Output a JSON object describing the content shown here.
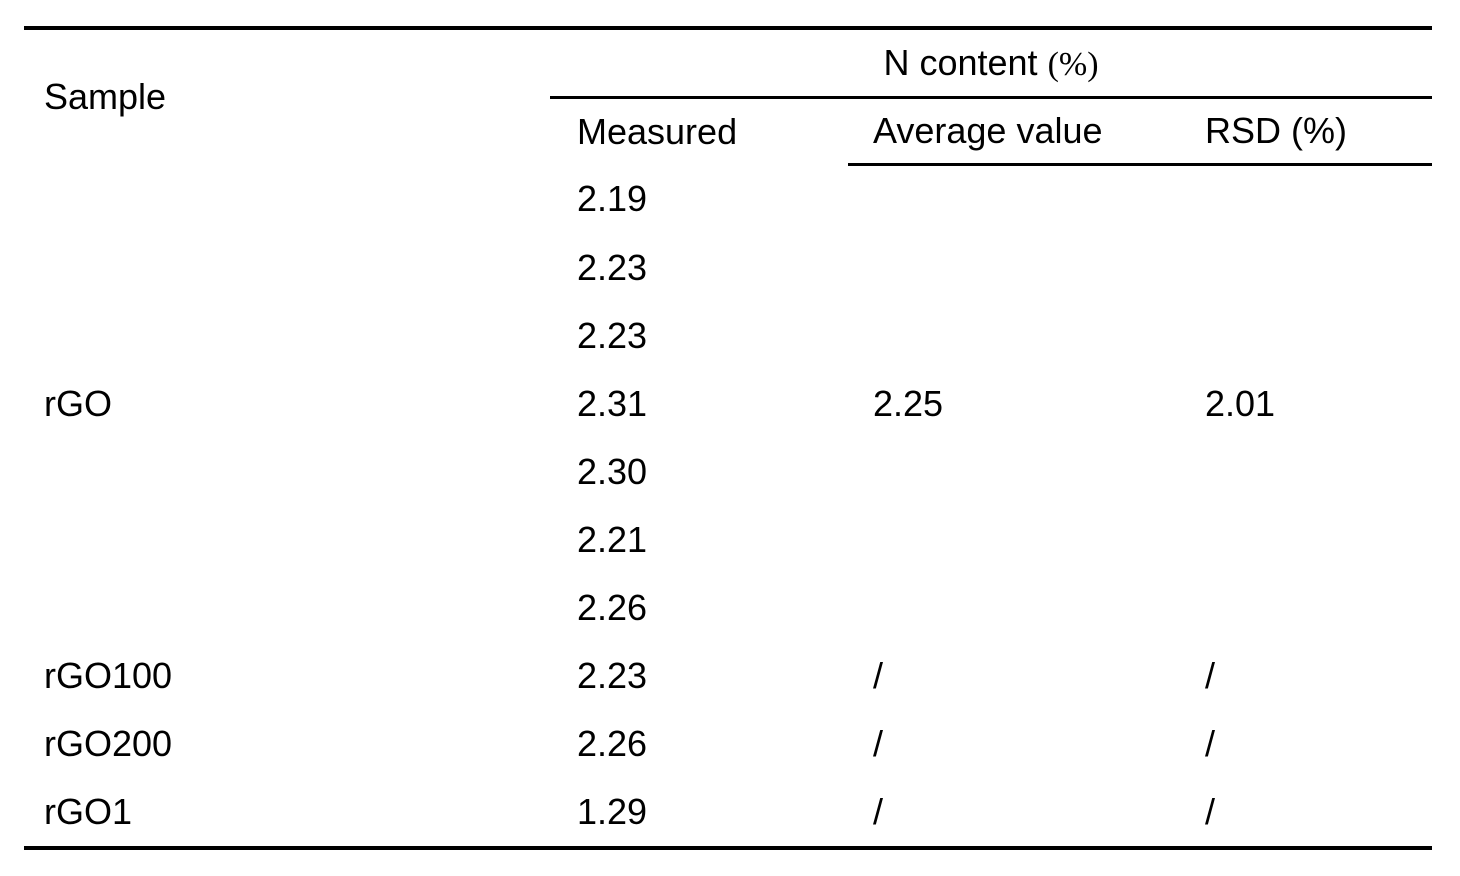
{
  "table": {
    "sample_header": "Sample",
    "group_header": {
      "text": "N content ",
      "unit": "(%)"
    },
    "sub_headers": {
      "measured": "Measured",
      "average": "Average value",
      "rsd": "RSD (%)"
    },
    "rows": [
      {
        "sample": "",
        "measured": "2.19",
        "average": "",
        "rsd": ""
      },
      {
        "sample": "",
        "measured": "2.23",
        "average": "",
        "rsd": ""
      },
      {
        "sample": "",
        "measured": "2.23",
        "average": "",
        "rsd": ""
      },
      {
        "sample": "rGO",
        "measured": "2.31",
        "average": "2.25",
        "rsd": "2.01"
      },
      {
        "sample": "",
        "measured": "2.30",
        "average": "",
        "rsd": ""
      },
      {
        "sample": "",
        "measured": "2.21",
        "average": "",
        "rsd": ""
      },
      {
        "sample": "",
        "measured": "2.26",
        "average": "",
        "rsd": ""
      },
      {
        "sample": "rGO100",
        "measured": "2.23",
        "average": "/",
        "rsd": "/"
      },
      {
        "sample": "rGO200",
        "measured": "2.26",
        "average": "/",
        "rsd": "/"
      },
      {
        "sample": "rGO1",
        "measured": "1.29",
        "average": "/",
        "rsd": "/"
      }
    ]
  }
}
